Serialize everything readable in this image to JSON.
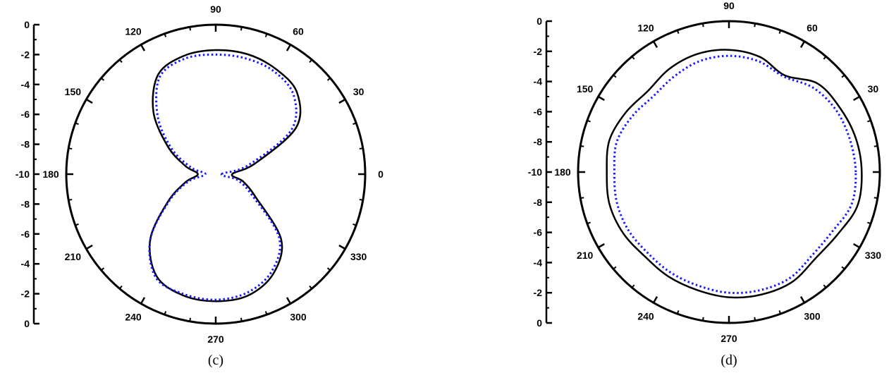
{
  "chart_data": [
    {
      "type": "polar-line",
      "caption": "(c)",
      "angle_ticks": [
        "0",
        "30",
        "60",
        "90",
        "120",
        "150",
        "180",
        "210",
        "240",
        "270",
        "300",
        "330"
      ],
      "radial_ticks": [
        "0",
        "-2",
        "-4",
        "-6",
        "-8",
        "-10",
        "-8",
        "-6",
        "-4",
        "-2",
        "0"
      ],
      "rlim": [
        -10,
        0
      ],
      "series": [
        {
          "style": "solid",
          "color": "#000000",
          "angles": [
            0,
            15,
            30,
            45,
            60,
            75,
            90,
            105,
            120,
            135,
            150,
            165,
            180,
            195,
            210,
            225,
            240,
            255,
            270,
            285,
            300,
            315,
            330,
            345
          ],
          "values": [
            -8.9,
            -7.3,
            -3.8,
            -2.3,
            -1.9,
            -1.7,
            -1.7,
            -1.8,
            -2.3,
            -4.1,
            -6.3,
            -7.9,
            -8.8,
            -7.9,
            -6.3,
            -3.8,
            -2.1,
            -1.6,
            -1.5,
            -1.6,
            -2.3,
            -3.8,
            -6.9,
            -8.1
          ]
        },
        {
          "style": "dotted",
          "color": "#1a1aff",
          "angles": [
            0,
            15,
            30,
            45,
            60,
            75,
            90,
            105,
            120,
            135,
            150,
            165,
            180,
            195,
            210,
            225,
            240,
            255,
            270,
            285,
            300,
            315,
            330,
            345
          ],
          "values": [
            -9.6,
            -7.8,
            -4.2,
            -2.6,
            -2.1,
            -2.0,
            -2.0,
            -2.0,
            -2.5,
            -4.5,
            -6.6,
            -8.3,
            -9.3,
            -8.1,
            -6.4,
            -3.8,
            -2.0,
            -1.7,
            -1.6,
            -1.8,
            -2.5,
            -4.0,
            -7.2,
            -8.5
          ]
        }
      ]
    },
    {
      "type": "polar-line",
      "caption": "(d)",
      "angle_ticks": [
        "0",
        "30",
        "60",
        "90",
        "120",
        "150",
        "180",
        "210",
        "240",
        "270",
        "300",
        "330"
      ],
      "radial_ticks": [
        "0",
        "-2",
        "-4",
        "-6",
        "-8",
        "-10",
        "-8",
        "-6",
        "-4",
        "-2",
        "0"
      ],
      "rlim": [
        -10,
        0
      ],
      "series": [
        {
          "style": "solid",
          "color": "#000000",
          "angles": [
            0,
            15,
            30,
            45,
            60,
            75,
            90,
            105,
            120,
            135,
            150,
            165,
            180,
            195,
            210,
            225,
            240,
            255,
            270,
            285,
            300,
            315,
            330,
            345
          ],
          "values": [
            -1.2,
            -1.3,
            -1.5,
            -1.7,
            -2.6,
            -2.1,
            -1.9,
            -1.9,
            -2.1,
            -2.4,
            -2.1,
            -1.8,
            -1.9,
            -1.8,
            -1.9,
            -2.1,
            -2.0,
            -1.9,
            -1.7,
            -1.6,
            -1.6,
            -1.9,
            -1.7,
            -1.2
          ]
        },
        {
          "style": "dotted",
          "color": "#1a1aff",
          "angles": [
            0,
            15,
            30,
            45,
            60,
            75,
            90,
            105,
            120,
            135,
            150,
            165,
            180,
            195,
            210,
            225,
            240,
            255,
            270,
            285,
            300,
            315,
            330,
            345
          ],
          "values": [
            -1.6,
            -1.7,
            -1.8,
            -2.1,
            -2.7,
            -2.4,
            -2.3,
            -2.4,
            -2.7,
            -2.9,
            -2.6,
            -2.3,
            -2.4,
            -2.3,
            -2.3,
            -2.4,
            -2.3,
            -2.2,
            -2.0,
            -1.9,
            -1.9,
            -2.2,
            -2.1,
            -1.6
          ]
        }
      ]
    }
  ]
}
